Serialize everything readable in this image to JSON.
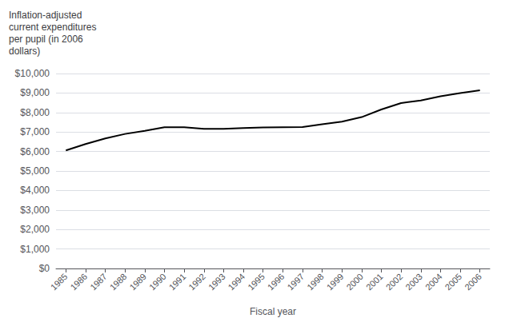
{
  "chart_data": {
    "type": "line",
    "ylabel": "Inflation-adjusted\ncurrent expenditures\nper pupil (in 2006\ndollars)",
    "xlabel": "Fiscal year",
    "x": [
      1985,
      1986,
      1987,
      1988,
      1989,
      1990,
      1991,
      1992,
      1993,
      1994,
      1995,
      1996,
      1997,
      1998,
      1999,
      2000,
      2001,
      2002,
      2003,
      2004,
      2005,
      2006
    ],
    "values": [
      6058,
      6386,
      6672,
      6901,
      7056,
      7243,
      7248,
      7166,
      7159,
      7200,
      7233,
      7245,
      7257,
      7397,
      7527,
      7764,
      8157,
      8482,
      8618,
      8833,
      8994,
      9138
    ],
    "color": "#000000",
    "xlim": [
      1984.5,
      2006.5
    ],
    "xticks": [
      1985,
      1986,
      1987,
      1988,
      1989,
      1990,
      1991,
      1992,
      1993,
      1994,
      1995,
      1996,
      1997,
      1998,
      1999,
      2000,
      2001,
      2002,
      2003,
      2004,
      2005,
      2006
    ],
    "ylim": [
      0,
      10000
    ],
    "yticks": [
      {
        "value": 0,
        "label": "$0"
      },
      {
        "value": 1000,
        "label": "$1,000"
      },
      {
        "value": 2000,
        "label": "$2,000"
      },
      {
        "value": 3000,
        "label": "$3,000"
      },
      {
        "value": 4000,
        "label": "$4,000"
      },
      {
        "value": 5000,
        "label": "$5,000"
      },
      {
        "value": 6000,
        "label": "$6,000"
      },
      {
        "value": 7000,
        "label": "$7,000"
      },
      {
        "value": 8000,
        "label": "$8,000"
      },
      {
        "value": 9000,
        "label": "$9,000"
      },
      {
        "value": 10000,
        "label": "$10,000"
      }
    ],
    "grid": "y"
  }
}
